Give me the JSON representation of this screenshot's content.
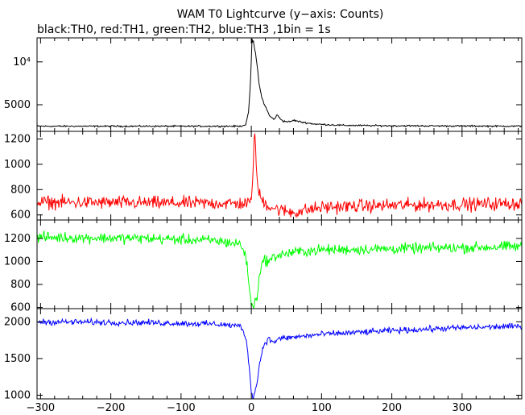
{
  "chart_data": {
    "type": "line",
    "title": "WAM T0 Lightcurve (y−axis: Counts)",
    "subtitle": "black:TH0, red:TH1, green:TH2, blue:TH3 ,1bin = 1s",
    "xlabel": "",
    "x_ticks": [
      -300,
      -200,
      -100,
      0,
      100,
      200,
      300
    ],
    "x_tick_labels": [
      "−300",
      "−200",
      "−100",
      "0",
      "100",
      "200",
      "300"
    ],
    "xlim": [
      -305,
      385
    ],
    "grid": false,
    "series": [
      {
        "name": "TH0",
        "color": "#000000",
        "ylim": [
          1900,
          12800
        ],
        "y_ticks": [
          5000,
          10000
        ],
        "y_tick_labels": [
          "5000",
          "10⁴"
        ],
        "noise": 80,
        "points": [
          [
            -305,
            2500
          ],
          [
            -15,
            2500
          ],
          [
            -8,
            2700
          ],
          [
            -4,
            4000
          ],
          [
            -1,
            8000
          ],
          [
            1,
            12500
          ],
          [
            3,
            12300
          ],
          [
            6,
            11000
          ],
          [
            9,
            9000
          ],
          [
            12,
            7000
          ],
          [
            15,
            5800
          ],
          [
            20,
            4800
          ],
          [
            26,
            3700
          ],
          [
            32,
            3300
          ],
          [
            37,
            3800
          ],
          [
            40,
            3500
          ],
          [
            45,
            3100
          ],
          [
            55,
            3000
          ],
          [
            60,
            3200
          ],
          [
            70,
            3000
          ],
          [
            90,
            2750
          ],
          [
            130,
            2600
          ],
          [
            200,
            2550
          ],
          [
            385,
            2500
          ]
        ]
      },
      {
        "name": "TH1",
        "color": "#ff0000",
        "ylim": [
          560,
          1260
        ],
        "y_ticks": [
          600,
          800,
          1000,
          1200
        ],
        "y_tick_labels": [
          "600",
          "800",
          "1000",
          "1200"
        ],
        "noise": 45,
        "points": [
          [
            -305,
            700
          ],
          [
            -5,
            690
          ],
          [
            0,
            700
          ],
          [
            2,
            900
          ],
          [
            4,
            1230
          ],
          [
            6,
            1150
          ],
          [
            8,
            900
          ],
          [
            10,
            780
          ],
          [
            15,
            720
          ],
          [
            25,
            670
          ],
          [
            40,
            640
          ],
          [
            60,
            620
          ],
          [
            80,
            640
          ],
          [
            100,
            660
          ],
          [
            150,
            670
          ],
          [
            250,
            680
          ],
          [
            385,
            690
          ]
        ]
      },
      {
        "name": "TH2",
        "color": "#00ff00",
        "ylim": [
          590,
          1360
        ],
        "y_ticks": [
          600,
          800,
          1000,
          1200
        ],
        "y_tick_labels": [
          "600",
          "800",
          "1000",
          "1200"
        ],
        "noise": 40,
        "points": [
          [
            -305,
            1210
          ],
          [
            -150,
            1200
          ],
          [
            -50,
            1180
          ],
          [
            -15,
            1150
          ],
          [
            -8,
            1050
          ],
          [
            -3,
            800
          ],
          [
            0,
            620
          ],
          [
            3,
            600
          ],
          [
            8,
            700
          ],
          [
            12,
            900
          ],
          [
            18,
            1020
          ],
          [
            25,
            1000
          ],
          [
            35,
            1050
          ],
          [
            45,
            1060
          ],
          [
            60,
            1080
          ],
          [
            100,
            1100
          ],
          [
            200,
            1110
          ],
          [
            300,
            1120
          ],
          [
            385,
            1130
          ]
        ]
      },
      {
        "name": "TH3",
        "color": "#0000ff",
        "ylim": [
          950,
          2180
        ],
        "y_ticks": [
          1000,
          1500,
          2000
        ],
        "y_tick_labels": [
          "1000",
          "1500",
          "2000"
        ],
        "noise": 35,
        "points": [
          [
            -305,
            2000
          ],
          [
            -150,
            1990
          ],
          [
            -50,
            1970
          ],
          [
            -15,
            1940
          ],
          [
            -8,
            1800
          ],
          [
            -3,
            1400
          ],
          [
            0,
            1050
          ],
          [
            3,
            980
          ],
          [
            8,
            1150
          ],
          [
            12,
            1450
          ],
          [
            18,
            1700
          ],
          [
            25,
            1770
          ],
          [
            30,
            1720
          ],
          [
            40,
            1770
          ],
          [
            60,
            1790
          ],
          [
            100,
            1830
          ],
          [
            200,
            1880
          ],
          [
            300,
            1920
          ],
          [
            385,
            1940
          ]
        ]
      }
    ]
  }
}
